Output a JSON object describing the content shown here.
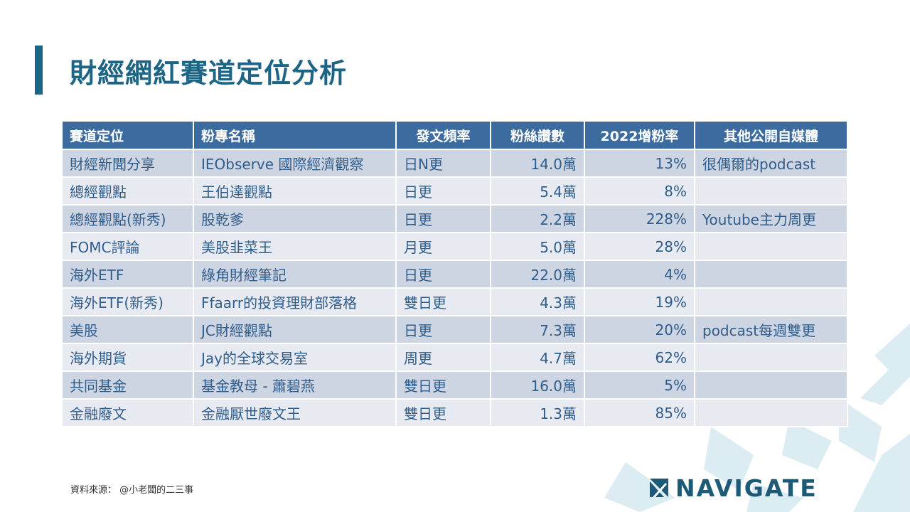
{
  "slide": {
    "title": "財經網紅賽道定位分析",
    "source": "資料來源： @小老闆的二三事",
    "logo_text": "NAVIGATE",
    "colors": {
      "accent": "#1d6585",
      "header_bg": "#3c6c9f",
      "row_odd": "#cdd4e2",
      "row_even": "#e7eaf0",
      "cell_text": "#2f5d8c"
    }
  },
  "table": {
    "headers": [
      "賽道定位",
      "粉專名稱",
      "發文頻率",
      "粉絲讚數",
      "2022增粉率",
      "其他公開自媒體"
    ],
    "rows": [
      [
        "財經新聞分享",
        "IEObserve 國際經濟觀察",
        "日N更",
        "14.0萬",
        "13%",
        "很偶爾的podcast"
      ],
      [
        "總經觀點",
        "王伯達觀點",
        "日更",
        "5.4萬",
        "8%",
        ""
      ],
      [
        "總經觀點(新秀)",
        "股乾爹",
        "日更",
        "2.2萬",
        "228%",
        "Youtube主力周更"
      ],
      [
        "FOMC評論",
        "美股韭菜王",
        "月更",
        "5.0萬",
        "28%",
        ""
      ],
      [
        "海外ETF",
        "綠角財經筆記",
        "日更",
        "22.0萬",
        "4%",
        ""
      ],
      [
        "海外ETF(新秀)",
        "Ffaarr的投資理財部落格",
        "雙日更",
        "4.3萬",
        "19%",
        ""
      ],
      [
        "美股",
        "JC財經觀點",
        "日更",
        "7.3萬",
        "20%",
        "podcast每週雙更"
      ],
      [
        "海外期貨",
        "Jay的全球交易室",
        "周更",
        "4.7萬",
        "62%",
        ""
      ],
      [
        "共同基金",
        "基金教母 - 蕭碧燕",
        "雙日更",
        "16.0萬",
        "5%",
        ""
      ],
      [
        "金融廢文",
        "金融厭世廢文王",
        "雙日更",
        "1.3萬",
        "85%",
        ""
      ]
    ]
  }
}
